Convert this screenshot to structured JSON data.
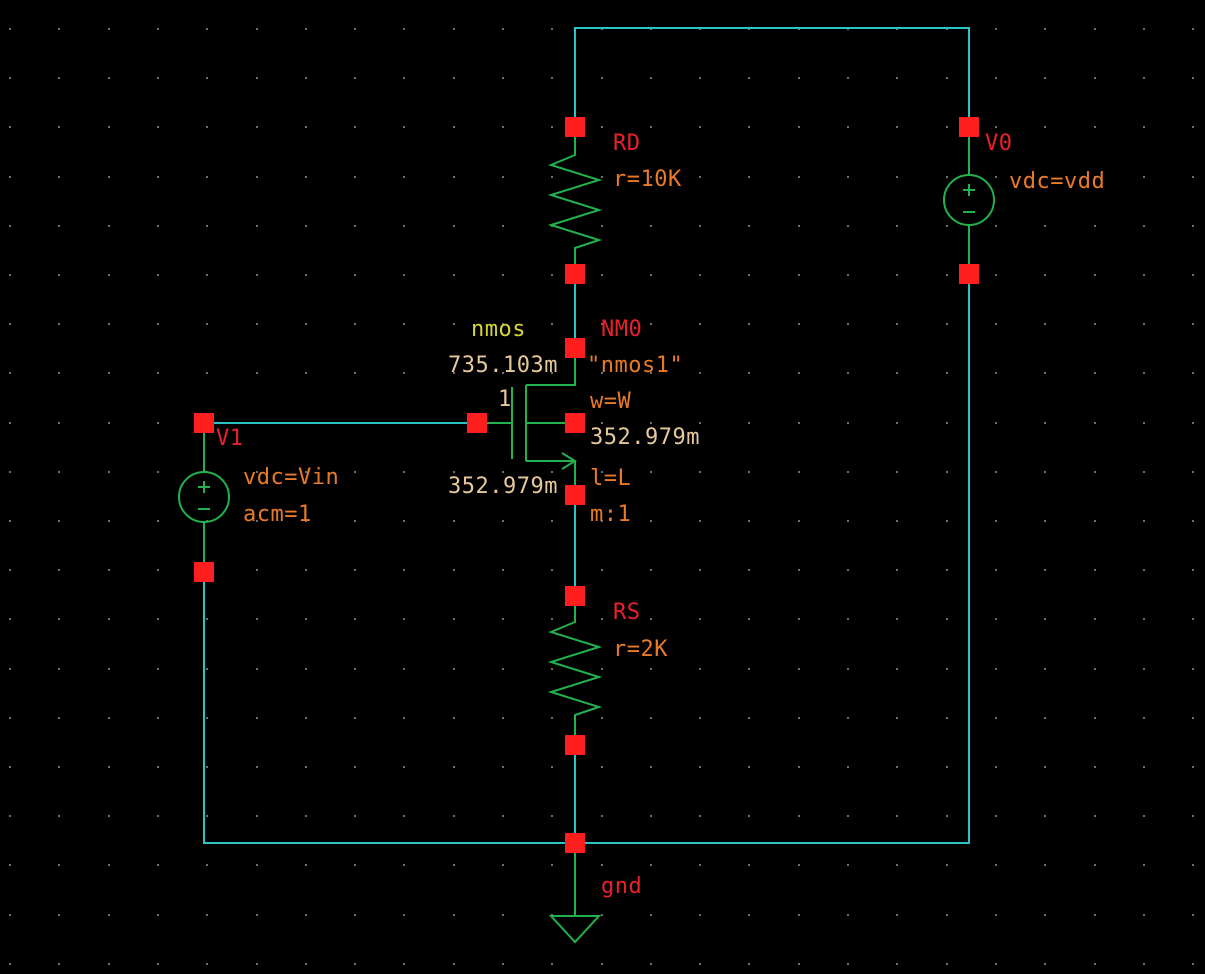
{
  "colors": {
    "background": "#000000",
    "wire": "#2bc4c4",
    "component": "#22b14c",
    "pin": "#ff1e1e",
    "instance_label": "#e8222b",
    "parameter": "#e87a2a",
    "cell_name": "#d6d63a",
    "operating_point": "#e6c89a",
    "grid_dot": "#c8c8c8"
  },
  "schematic": {
    "rd": {
      "name": "RD",
      "param": "r=10K",
      "icon": "resistor-icon"
    },
    "rs": {
      "name": "RS",
      "param": "r=2K",
      "icon": "resistor-icon"
    },
    "v0": {
      "name": "V0",
      "param": "vdc=vdd",
      "icon": "dc-voltage-source-icon"
    },
    "v1": {
      "name": "V1",
      "param1": "vdc=Vin",
      "param2": "acm=1",
      "icon": "dc-voltage-source-icon"
    },
    "nm0": {
      "cell": "nmos",
      "name": "NM0",
      "model": "\"nmos1\"",
      "width": "w=W",
      "length": "l=L",
      "multiplier": "m:1",
      "body_pin": "1",
      "drain_voltage": "735.103m",
      "source_voltage": "352.979m",
      "body_voltage": "352.979m",
      "icon": "nmos-transistor-icon"
    },
    "ground": {
      "label": "gnd",
      "icon": "ground-icon"
    }
  }
}
